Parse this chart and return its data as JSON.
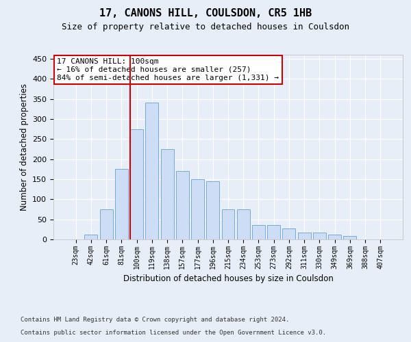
{
  "title": "17, CANONS HILL, COULSDON, CR5 1HB",
  "subtitle": "Size of property relative to detached houses in Coulsdon",
  "xlabel": "Distribution of detached houses by size in Coulsdon",
  "ylabel": "Number of detached properties",
  "categories": [
    "23sqm",
    "42sqm",
    "61sqm",
    "81sqm",
    "100sqm",
    "119sqm",
    "138sqm",
    "157sqm",
    "177sqm",
    "196sqm",
    "215sqm",
    "234sqm",
    "253sqm",
    "273sqm",
    "292sqm",
    "311sqm",
    "330sqm",
    "349sqm",
    "369sqm",
    "388sqm",
    "407sqm"
  ],
  "values": [
    0,
    12,
    75,
    175,
    275,
    340,
    225,
    170,
    150,
    145,
    75,
    75,
    35,
    35,
    28,
    17,
    17,
    12,
    8,
    0,
    0
  ],
  "bar_color": "#ccddf5",
  "bar_edge_color": "#7aaad0",
  "vline_color": "#cc0000",
  "vline_x_index": 4,
  "annotation_text": "17 CANONS HILL: 100sqm\n← 16% of detached houses are smaller (257)\n84% of semi-detached houses are larger (1,331) →",
  "annotation_box_color": "#ffffff",
  "annotation_box_edge": "#cc0000",
  "ylim": [
    0,
    460
  ],
  "yticks": [
    0,
    50,
    100,
    150,
    200,
    250,
    300,
    350,
    400,
    450
  ],
  "footer1": "Contains HM Land Registry data © Crown copyright and database right 2024.",
  "footer2": "Contains public sector information licensed under the Open Government Licence v3.0.",
  "bg_color": "#e8eef8",
  "plot_bg_color": "#e8eef8"
}
